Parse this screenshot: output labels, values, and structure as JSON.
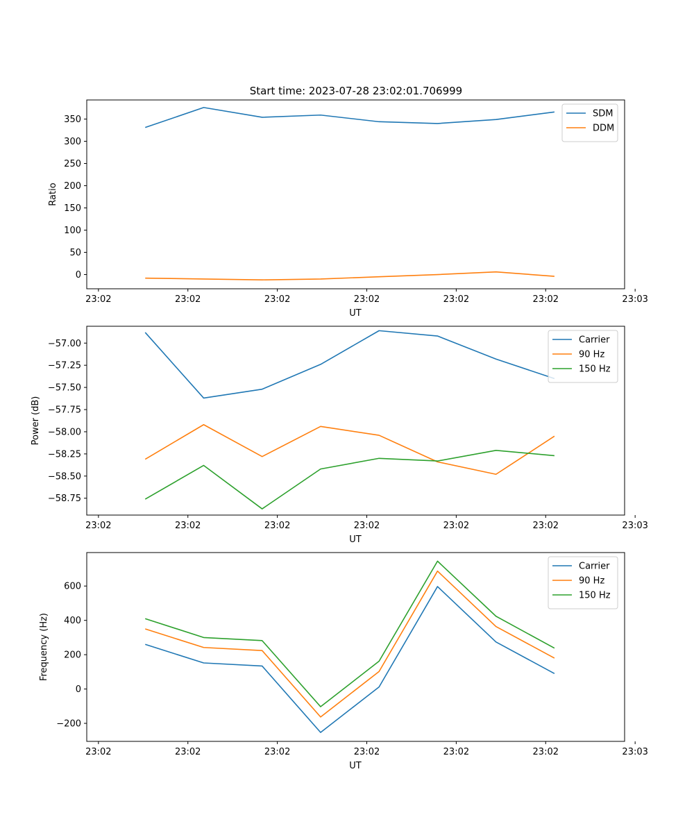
{
  "figure": {
    "title": "Start time: 2023-07-28 23:02:01.706999"
  },
  "colors": {
    "blue": "#1f77b4",
    "orange": "#ff7f0e",
    "green": "#2ca02c"
  },
  "chart_data": [
    {
      "type": "line",
      "title": "Start time: 2023-07-28 23:02:01.706999",
      "xlabel": "UT",
      "ylabel": "Ratio",
      "x": [
        1,
        2,
        3,
        4,
        5,
        6,
        7,
        8
      ],
      "xlim": [
        0,
        9.2
      ],
      "xticks": [
        0.2,
        1.73,
        3.26,
        4.79,
        6.32,
        7.85,
        9.38
      ],
      "xtick_labels": [
        "23:02",
        "23:02",
        "23:02",
        "23:02",
        "23:02",
        "23:02",
        "23:03"
      ],
      "ylim": [
        -32,
        393
      ],
      "yticks": [
        0,
        50,
        100,
        150,
        200,
        250,
        300,
        350
      ],
      "ytick_labels": [
        "0",
        "50",
        "100",
        "150",
        "200",
        "250",
        "300",
        "350"
      ],
      "legend": "top-right",
      "series": [
        {
          "name": "SDM",
          "color": "#1f77b4",
          "values": [
            331,
            376,
            354,
            359,
            344,
            340,
            349,
            366
          ]
        },
        {
          "name": "DDM",
          "color": "#ff7f0e",
          "values": [
            -8,
            -10,
            -12,
            -10,
            -5,
            0,
            6,
            -4
          ]
        }
      ]
    },
    {
      "type": "line",
      "title": "",
      "xlabel": "UT",
      "ylabel": "Power (dB)",
      "x": [
        1,
        2,
        3,
        4,
        5,
        6,
        7,
        8
      ],
      "xlim": [
        0,
        9.2
      ],
      "xticks": [
        0.2,
        1.73,
        3.26,
        4.79,
        6.32,
        7.85,
        9.38
      ],
      "xtick_labels": [
        "23:02",
        "23:02",
        "23:02",
        "23:02",
        "23:02",
        "23:02",
        "23:03"
      ],
      "ylim": [
        -58.94,
        -56.81
      ],
      "yticks": [
        -57.0,
        -57.25,
        -57.5,
        -57.75,
        -58.0,
        -58.25,
        -58.5,
        -58.75
      ],
      "ytick_labels": [
        "−57.00",
        "−57.25",
        "−57.50",
        "−57.75",
        "−58.00",
        "−58.25",
        "−58.50",
        "−58.75"
      ],
      "legend": "top-right",
      "series": [
        {
          "name": "Carrier",
          "color": "#1f77b4",
          "values": [
            -56.88,
            -57.62,
            -57.52,
            -57.24,
            -56.86,
            -56.92,
            -57.18,
            -57.4
          ]
        },
        {
          "name": "90 Hz",
          "color": "#ff7f0e",
          "values": [
            -58.31,
            -57.92,
            -58.28,
            -57.94,
            -58.04,
            -58.34,
            -58.48,
            -58.05
          ]
        },
        {
          "name": "150 Hz",
          "color": "#2ca02c",
          "values": [
            -58.76,
            -58.38,
            -58.87,
            -58.42,
            -58.3,
            -58.33,
            -58.21,
            -58.27
          ]
        }
      ]
    },
    {
      "type": "line",
      "title": "",
      "xlabel": "UT",
      "ylabel": "Frequency (Hz)",
      "x": [
        1,
        2,
        3,
        4,
        5,
        6,
        7,
        8
      ],
      "xlim": [
        0,
        9.2
      ],
      "xticks": [
        0.2,
        1.73,
        3.26,
        4.79,
        6.32,
        7.85,
        9.38
      ],
      "xtick_labels": [
        "23:02",
        "23:02",
        "23:02",
        "23:02",
        "23:02",
        "23:02",
        "23:03"
      ],
      "ylim": [
        -305,
        795
      ],
      "yticks": [
        -200,
        0,
        200,
        400,
        600
      ],
      "ytick_labels": [
        "−200",
        "0",
        "200",
        "400",
        "600"
      ],
      "legend": "top-right",
      "series": [
        {
          "name": "Carrier",
          "color": "#1f77b4",
          "values": [
            260,
            152,
            134,
            -253,
            12,
            597,
            274,
            90
          ]
        },
        {
          "name": "90 Hz",
          "color": "#ff7f0e",
          "values": [
            350,
            242,
            224,
            -163,
            102,
            687,
            364,
            180
          ]
        },
        {
          "name": "150 Hz",
          "color": "#2ca02c",
          "values": [
            410,
            300,
            282,
            -103,
            162,
            745,
            424,
            238
          ]
        }
      ]
    }
  ]
}
